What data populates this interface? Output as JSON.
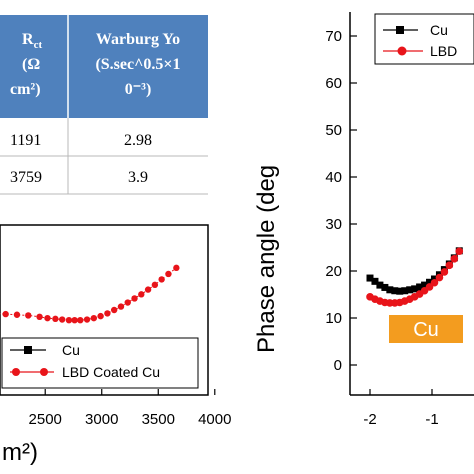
{
  "table": {
    "header_rct": "R",
    "header_rct_sub": "ct",
    "header_rct_unit1": "(Ω",
    "header_rct_unit2": "cm²)",
    "header_warburg1": "Warburg Yo",
    "header_warburg2": "(S.sec^0.5×1",
    "header_warburg3": "0⁻³)",
    "rows": [
      {
        "rct": "1191",
        "warburg": "2.98"
      },
      {
        "rct": "3759",
        "warburg": "3.9"
      }
    ],
    "header_color": "#4f81bd"
  },
  "chart_data": [
    {
      "type": "scatter",
      "xlabel": "m²)",
      "ticks_x": [
        "2500",
        "3000",
        "3500",
        "4000"
      ],
      "series": [
        {
          "name": "Cu",
          "color": "#000000",
          "marker": "square",
          "x": [],
          "y": []
        },
        {
          "name": "LBD Coated Cu",
          "color": "#e8141a",
          "marker": "circle",
          "x": [
            2050,
            2150,
            2250,
            2350,
            2450,
            2520,
            2590,
            2650,
            2710,
            2760,
            2810,
            2870,
            2930,
            2990,
            3050,
            3110,
            3170,
            3230,
            3290,
            3350,
            3410,
            3470,
            3530,
            3590,
            3660
          ],
          "y": [
            0.3,
            0.29,
            0.28,
            0.27,
            0.25,
            0.23,
            0.22,
            0.21,
            0.2,
            0.2,
            0.2,
            0.21,
            0.23,
            0.26,
            0.3,
            0.35,
            0.4,
            0.46,
            0.52,
            0.58,
            0.65,
            0.72,
            0.8,
            0.88,
            0.97
          ]
        }
      ],
      "xlim": [
        2100,
        4000
      ]
    },
    {
      "type": "scatter",
      "ylabel": "Phase angle (deg",
      "ticks_x": [
        "-2",
        "-1"
      ],
      "ticks_y": [
        "0",
        "10",
        "20",
        "30",
        "40",
        "50",
        "60",
        "70"
      ],
      "ylim": [
        0,
        73
      ],
      "annotation": "Cu",
      "annotation_color": "#f39c1f",
      "series": [
        {
          "name": "Cu",
          "color": "#000000",
          "marker": "square",
          "x": [
            -2.0,
            -1.92,
            -1.84,
            -1.76,
            -1.68,
            -1.6,
            -1.52,
            -1.44,
            -1.36,
            -1.28,
            -1.2,
            -1.12,
            -1.04,
            -0.96,
            -0.88,
            -0.8,
            -0.72,
            -0.64,
            -0.56
          ],
          "y": [
            18.5,
            17.8,
            17.0,
            16.5,
            16.0,
            15.8,
            15.7,
            15.8,
            16.0,
            16.2,
            16.6,
            17.0,
            17.6,
            18.3,
            19.2,
            20.3,
            21.5,
            22.8,
            24.3
          ]
        },
        {
          "name": "LBD",
          "color": "#e8141a",
          "marker": "circle",
          "x": [
            -2.0,
            -1.92,
            -1.84,
            -1.76,
            -1.68,
            -1.6,
            -1.52,
            -1.44,
            -1.36,
            -1.28,
            -1.2,
            -1.12,
            -1.04,
            -0.96,
            -0.88,
            -0.8,
            -0.72,
            -0.64,
            -0.56
          ],
          "y": [
            14.5,
            14.0,
            13.6,
            13.3,
            13.2,
            13.2,
            13.3,
            13.6,
            14.0,
            14.5,
            15.1,
            15.8,
            16.6,
            17.5,
            18.6,
            19.8,
            21.2,
            22.6,
            24.2
          ]
        }
      ],
      "xlim": [
        -2.15,
        -0.55
      ]
    }
  ]
}
